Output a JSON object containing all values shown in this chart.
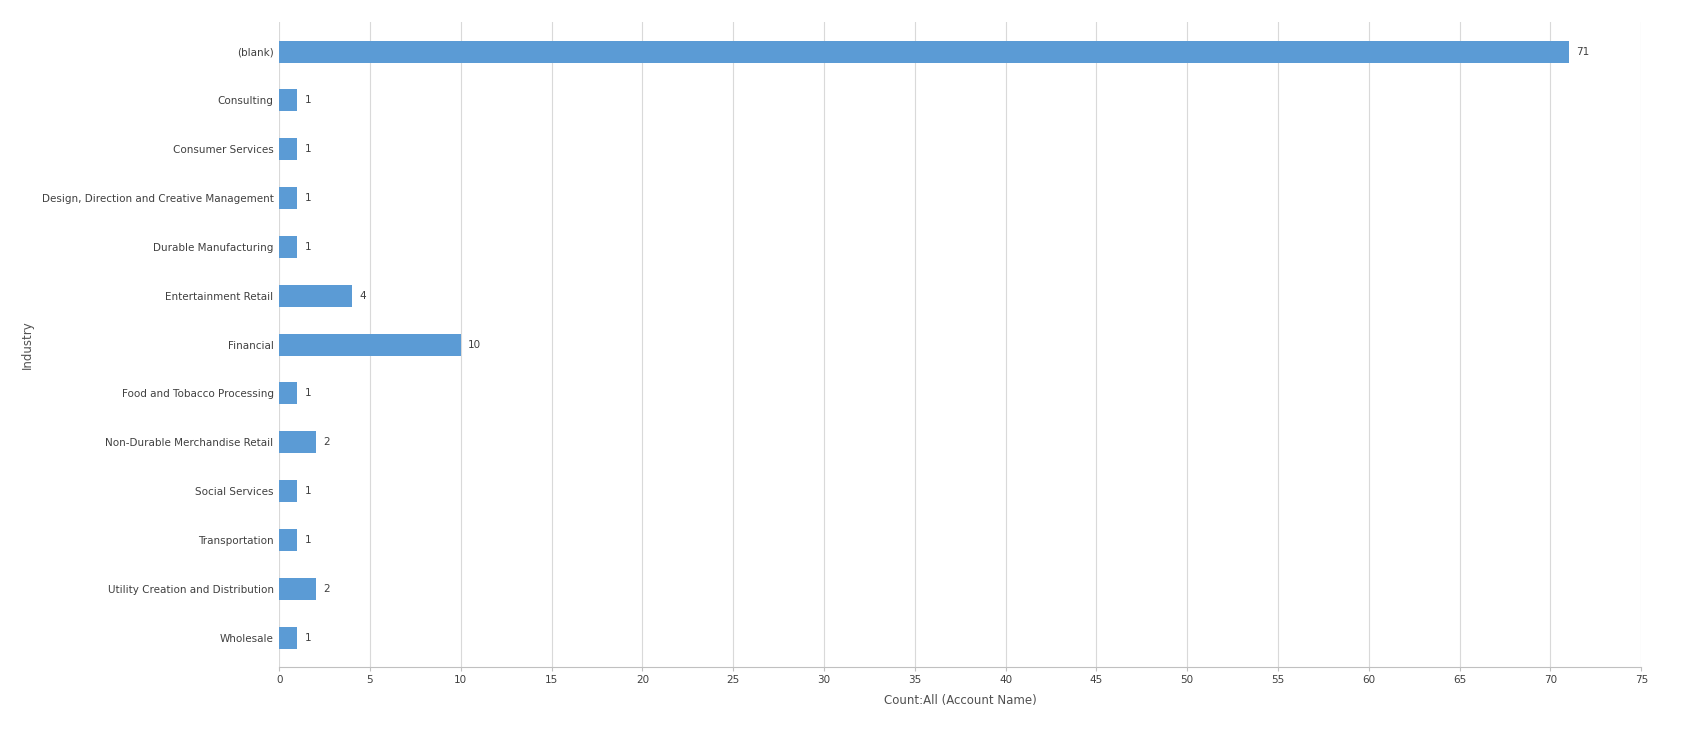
{
  "categories": [
    "(blank)",
    "Consulting",
    "Consumer Services",
    "Design, Direction and Creative Management",
    "Durable Manufacturing",
    "Entertainment Retail",
    "Financial",
    "Food and Tobacco Processing",
    "Non-Durable Merchandise Retail",
    "Social Services",
    "Transportation",
    "Utility Creation and Distribution",
    "Wholesale"
  ],
  "values": [
    71,
    1,
    1,
    1,
    1,
    4,
    10,
    1,
    2,
    1,
    1,
    2,
    1
  ],
  "bar_color": "#5b9bd5",
  "xlabel": "Count:All (Account Name)",
  "ylabel": "Industry",
  "xlim": [
    0,
    75
  ],
  "xticks": [
    0,
    5,
    10,
    15,
    20,
    25,
    30,
    35,
    40,
    45,
    50,
    55,
    60,
    65,
    70,
    75
  ],
  "background_color": "#ffffff",
  "grid_color": "#d9d9d9",
  "tick_label_fontsize": 7.5,
  "axis_label_fontsize": 8.5,
  "bar_label_fontsize": 7.5,
  "bar_height": 0.45
}
